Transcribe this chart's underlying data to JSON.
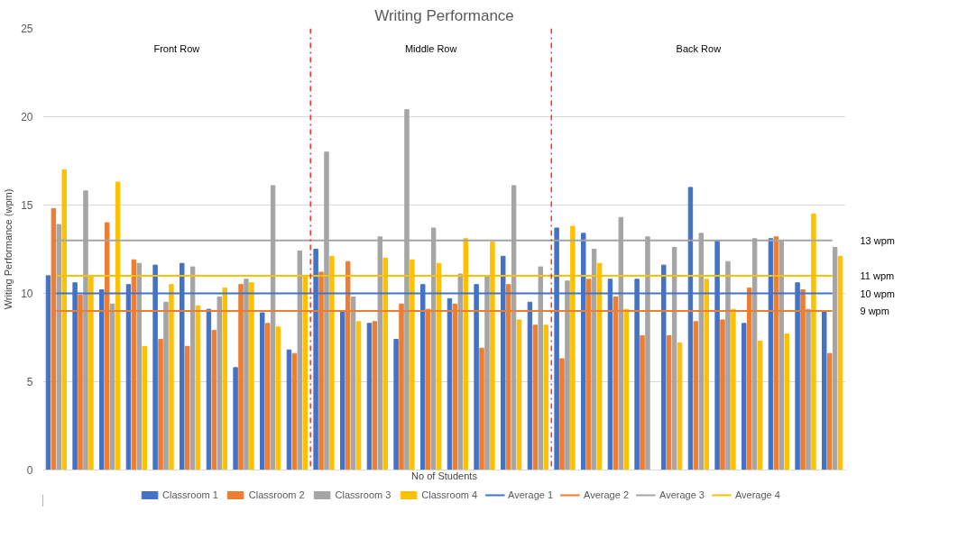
{
  "chart_data": {
    "type": "bar",
    "title": "Writing Performance",
    "xlabel": "No of Students",
    "ylabel": "Writing Performance (wpm)",
    "categories": [
      null,
      null,
      null,
      null,
      null,
      null,
      null,
      null,
      null,
      null,
      null,
      null,
      null,
      null,
      null,
      null,
      null,
      null,
      null,
      null,
      null,
      null,
      null,
      null,
      null,
      null,
      null,
      null,
      null,
      null
    ],
    "series": [
      {
        "name": "Classroom 1",
        "color": "#4472c4",
        "values": [
          11.0,
          10.6,
          10.2,
          10.5,
          11.6,
          11.7,
          9.1,
          5.8,
          8.9,
          6.8,
          12.5,
          9.0,
          8.3,
          7.4,
          10.5,
          9.7,
          10.5,
          12.1,
          9.5,
          13.7,
          13.4,
          10.8,
          10.8,
          11.6,
          16.0,
          13.0,
          8.3,
          13.1,
          10.6,
          9.0
        ]
      },
      {
        "name": "Classroom 2",
        "color": "#ed7d31",
        "values": [
          14.8,
          9.9,
          14.0,
          11.9,
          7.4,
          7.0,
          7.9,
          10.5,
          8.3,
          6.6,
          11.2,
          11.8,
          8.4,
          9.4,
          9.1,
          9.4,
          6.9,
          10.5,
          8.2,
          6.3,
          10.8,
          9.8,
          7.6,
          7.6,
          8.4,
          8.5,
          10.3,
          13.2,
          10.2,
          6.6
        ]
      },
      {
        "name": "Classroom 3",
        "color": "#a5a5a5",
        "values": [
          13.9,
          15.8,
          9.4,
          11.7,
          9.5,
          11.5,
          9.8,
          10.8,
          16.1,
          12.4,
          18.0,
          9.8,
          13.2,
          20.4,
          13.7,
          11.1,
          11.0,
          16.1,
          11.5,
          10.7,
          12.5,
          14.3,
          13.2,
          12.6,
          13.4,
          11.8,
          13.1,
          13.0,
          9.1,
          12.6
        ]
      },
      {
        "name": "Classroom 4",
        "color": "#ffc000",
        "values": [
          17.0,
          11.0,
          16.3,
          7.0,
          10.5,
          9.3,
          10.3,
          10.6,
          8.1,
          11.0,
          12.1,
          8.4,
          12.0,
          11.9,
          11.7,
          13.1,
          12.9,
          8.5,
          8.2,
          13.8,
          11.7,
          9.1,
          null,
          7.2,
          10.8,
          9.1,
          7.3,
          7.7,
          14.5,
          12.1
        ]
      },
      {
        "name": "Average 1",
        "type": "line",
        "color": "#4472c4",
        "values": [
          10,
          10,
          10,
          10,
          10,
          10,
          10,
          10,
          10,
          10,
          10,
          10,
          10,
          10,
          10,
          10,
          10,
          10,
          10,
          10,
          10,
          10,
          10,
          10,
          10,
          10,
          10,
          10,
          10,
          10
        ]
      },
      {
        "name": "Average 2",
        "type": "line",
        "color": "#ed7d31",
        "values": [
          9,
          9,
          9,
          9,
          9,
          9,
          9,
          9,
          9,
          9,
          9,
          9,
          9,
          9,
          9,
          9,
          9,
          9,
          9,
          9,
          9,
          9,
          9,
          9,
          9,
          9,
          9,
          9,
          9,
          9
        ]
      },
      {
        "name": "Average 3",
        "type": "line",
        "color": "#a5a5a5",
        "values": [
          13,
          13,
          13,
          13,
          13,
          13,
          13,
          13,
          13,
          13,
          13,
          13,
          13,
          13,
          13,
          13,
          13,
          13,
          13,
          13,
          13,
          13,
          13,
          13,
          13,
          13,
          13,
          13,
          13,
          13
        ]
      },
      {
        "name": "Average 4",
        "type": "line",
        "color": "#ffc000",
        "values": [
          11,
          11,
          11,
          11,
          11,
          11,
          11,
          11,
          11,
          11,
          11,
          11,
          11,
          11,
          11,
          11,
          11,
          11,
          11,
          11,
          11,
          11,
          11,
          11,
          11,
          11,
          11,
          11,
          11,
          11
        ]
      }
    ],
    "ylim": [
      0,
      25
    ],
    "yticks": [
      0,
      5,
      10,
      15,
      20,
      25
    ],
    "grid": "y",
    "legend": "bottom",
    "tick_labels": "y",
    "annotations": [
      "Front Row",
      "Middle Row",
      "Back Row",
      "13 wpm",
      "11 wpm",
      "10 wpm",
      "9 wpm"
    ]
  }
}
